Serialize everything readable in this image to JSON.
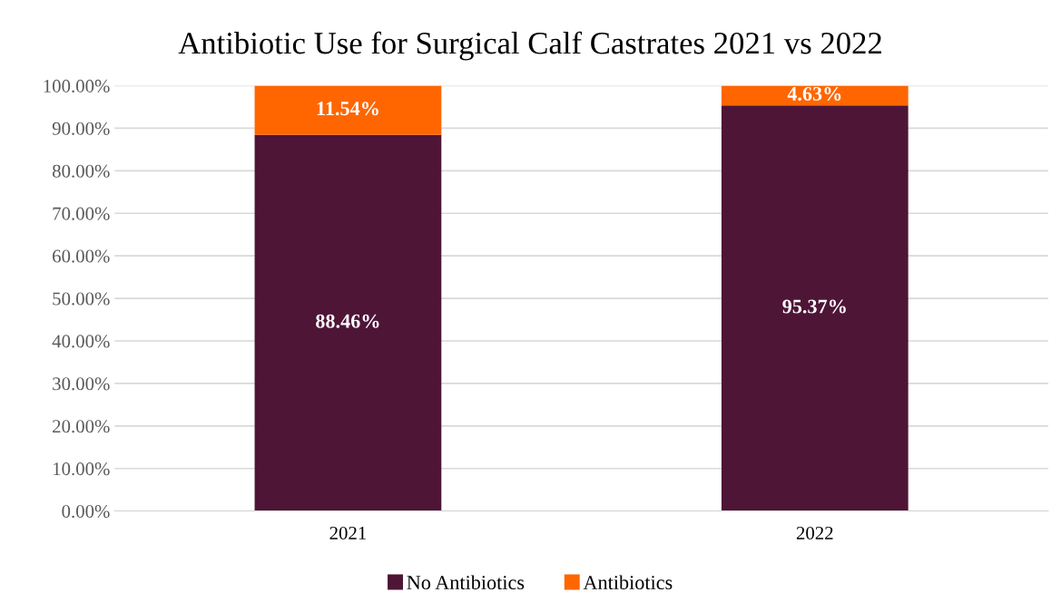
{
  "chart_data": {
    "type": "bar",
    "title": "Antibiotic Use for Surgical Calf Castrates 2021 vs 2022",
    "categories": [
      "2021",
      "2022"
    ],
    "stacked": true,
    "series": [
      {
        "name": "No Antibiotics",
        "color": "#4e1537",
        "values": [
          88.46,
          95.37
        ],
        "value_labels": [
          "88.46%",
          "95.37%"
        ]
      },
      {
        "name": "Antibiotics",
        "color": "#ff6600",
        "values": [
          11.54,
          4.63
        ],
        "value_labels": [
          "11.54%",
          "4.63%"
        ]
      }
    ],
    "ylim": [
      0,
      100
    ],
    "yticks": [
      {
        "value": 0,
        "label": "0.00%"
      },
      {
        "value": 10,
        "label": "10.00%"
      },
      {
        "value": 20,
        "label": "20.00%"
      },
      {
        "value": 30,
        "label": "30.00%"
      },
      {
        "value": 40,
        "label": "40.00%"
      },
      {
        "value": 50,
        "label": "50.00%"
      },
      {
        "value": 60,
        "label": "60.00%"
      },
      {
        "value": 70,
        "label": "70.00%"
      },
      {
        "value": 80,
        "label": "80.00%"
      },
      {
        "value": 90,
        "label": "90.00%"
      },
      {
        "value": 100,
        "label": "100.00%"
      }
    ],
    "grid": "y",
    "legend": "bottom"
  }
}
